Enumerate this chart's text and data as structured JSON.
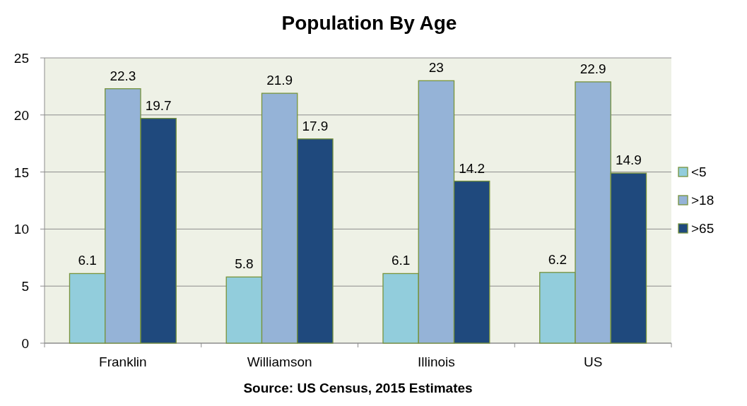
{
  "chart_data": {
    "type": "bar",
    "title": "Population By Age",
    "categories": [
      "Franklin",
      "Williamson",
      "Illinois",
      "US"
    ],
    "series": [
      {
        "name": "<5",
        "color": "#92cddc",
        "values": [
          6.1,
          5.8,
          6.1,
          6.2
        ]
      },
      {
        "name": ">18",
        "color": "#95b3d7",
        "values": [
          22.3,
          21.9,
          23,
          22.9
        ]
      },
      {
        "name": ">65",
        "color": "#1f497d",
        "values": [
          19.7,
          17.9,
          14.2,
          14.9
        ]
      }
    ],
    "ylim": [
      0,
      25
    ],
    "yticks": [
      0,
      5,
      10,
      15,
      20,
      25
    ],
    "grid": "y",
    "legend": "right",
    "data_labels": true,
    "annotations": [
      "Source: US Census, 2015 Estimates"
    ]
  }
}
